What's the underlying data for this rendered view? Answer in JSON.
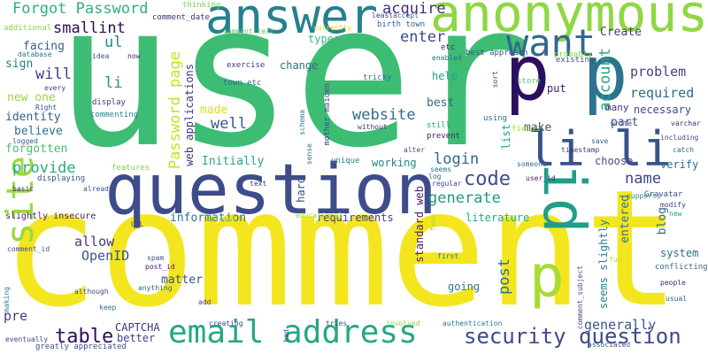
{
  "words": [
    {
      "text": "user",
      "color": "#3dbc74"
    },
    {
      "text": "comment",
      "color": "#f4e61e"
    },
    {
      "text": "question",
      "color": "#3e4c8a"
    },
    {
      "text": "anonymous",
      "color": "#8fd744"
    },
    {
      "text": "answer",
      "color": "#27808e"
    },
    {
      "text": "p",
      "color": "#2b0f5e"
    },
    {
      "text": "p",
      "color": "#2c738e"
    },
    {
      "text": "p",
      "color": "#a8db34"
    },
    {
      "text": "id",
      "color": "#1f9e89"
    },
    {
      "text": "want",
      "color": "#31688e"
    },
    {
      "text": "li li",
      "color": "#3a528b"
    },
    {
      "text": "site",
      "color": "#9ad93c"
    },
    {
      "text": "email address",
      "color": "#26a784"
    },
    {
      "text": "security question",
      "color": "#3e4989"
    },
    {
      "text": "Forgot Password",
      "color": "#30b07a"
    },
    {
      "text": "smallint",
      "color": "#2c0b54"
    },
    {
      "text": "ul",
      "color": "#228b8d"
    },
    {
      "text": "li",
      "color": "#20928c"
    },
    {
      "text": "will",
      "color": "#443b84"
    },
    {
      "text": "sign",
      "color": "#287d8e"
    },
    {
      "text": "new one",
      "color": "#97d83f"
    },
    {
      "text": "identity",
      "color": "#31648d"
    },
    {
      "text": "believe",
      "color": "#2c718e"
    },
    {
      "text": "forgotten",
      "color": "#4ac16d"
    },
    {
      "text": "facing",
      "color": "#365d8d"
    },
    {
      "text": "provide",
      "color": "#25ac82"
    },
    {
      "text": "Password page",
      "color": "#c8e020"
    },
    {
      "text": "web applications",
      "color": "#46337f"
    },
    {
      "text": "made",
      "color": "#d2e21b"
    },
    {
      "text": "well",
      "color": "#38588c"
    },
    {
      "text": "Initially",
      "color": "#23a983"
    },
    {
      "text": "information",
      "color": "#2a778e"
    },
    {
      "text": "allow",
      "color": "#453781"
    },
    {
      "text": "OpenID",
      "color": "#3b528b"
    },
    {
      "text": "matter",
      "color": "#3d4e8a"
    },
    {
      "text": "table",
      "color": "#2c0f5b"
    },
    {
      "text": "pre",
      "color": "#433d84"
    },
    {
      "text": "CAPTCHA",
      "color": "#46327e"
    },
    {
      "text": "better",
      "color": "#433e85"
    },
    {
      "text": "acquire",
      "color": "#472d7b"
    },
    {
      "text": "enter",
      "color": "#3f4788"
    },
    {
      "text": "types",
      "color": "#37b878"
    },
    {
      "text": "change",
      "color": "#2e6d8e"
    },
    {
      "text": "help",
      "color": "#20a486"
    },
    {
      "text": "Create",
      "color": "#423f85"
    },
    {
      "text": "account",
      "color": "#22a785"
    },
    {
      "text": "problem",
      "color": "#414287"
    },
    {
      "text": "required",
      "color": "#2f6c8e"
    },
    {
      "text": "website",
      "color": "#306a8e"
    },
    {
      "text": "best",
      "color": "#2e6e8e"
    },
    {
      "text": "make",
      "color": "#3e4a89"
    },
    {
      "text": "part",
      "color": "#3b518b"
    },
    {
      "text": "put",
      "color": "#481467"
    },
    {
      "text": "many",
      "color": "#472f7d"
    },
    {
      "text": "necessary",
      "color": "#3f4889"
    },
    {
      "text": "login",
      "color": "#31678e"
    },
    {
      "text": "code",
      "color": "#3d4e8a"
    },
    {
      "text": "generate",
      "color": "#1f998a"
    },
    {
      "text": "name",
      "color": "#404588"
    },
    {
      "text": "working",
      "color": "#25858e"
    },
    {
      "text": "choose",
      "color": "#3d4d8a"
    },
    {
      "text": "verify",
      "color": "#2d708e"
    },
    {
      "text": "requirements",
      "color": "#424086"
    },
    {
      "text": "literature",
      "color": "#24aa83"
    },
    {
      "text": "post",
      "color": "#2b748e"
    },
    {
      "text": "hard",
      "color": "#3b528b"
    },
    {
      "text": "standard web",
      "color": "#482374"
    },
    {
      "text": "entered",
      "color": "#2d718e"
    },
    {
      "text": "blog",
      "color": "#31688e"
    },
    {
      "text": "going",
      "color": "#2a788e"
    },
    {
      "text": "seems slightly",
      "color": "#27808e"
    },
    {
      "text": "generally",
      "color": "#39568c"
    },
    {
      "text": "system",
      "color": "#2c728e"
    },
    {
      "text": "list",
      "color": "#1fa088"
    },
    {
      "text": "comment_date",
      "color": "#472a7a"
    },
    {
      "text": "thinking",
      "color": "#7ad151"
    },
    {
      "text": "comment_text",
      "color": "#5ec962"
    },
    {
      "text": "birth town",
      "color": "#32648e"
    },
    {
      "text": "accept",
      "color": "#31668e"
    },
    {
      "text": "least",
      "color": "#453882"
    },
    {
      "text": "best approach",
      "color": "#39568c"
    },
    {
      "text": "existing",
      "color": "#3b528b"
    },
    {
      "text": "probably",
      "color": "#7fd34e"
    },
    {
      "text": "additional",
      "color": "#8bd646"
    },
    {
      "text": "database",
      "color": "#2d708e"
    },
    {
      "text": "idea",
      "color": "#3c4f8a"
    },
    {
      "text": "now",
      "color": "#481a6c"
    },
    {
      "text": "etc",
      "color": "#482071"
    },
    {
      "text": "enabled",
      "color": "#2f6c8e"
    },
    {
      "text": "every",
      "color": "#404387"
    },
    {
      "text": "Right",
      "color": "#3e4989"
    },
    {
      "text": "commenting",
      "color": "#26828e"
    },
    {
      "text": "display",
      "color": "#463480"
    },
    {
      "text": "exercise",
      "color": "#443983"
    },
    {
      "text": "town etc",
      "color": "#2f6b8e"
    },
    {
      "text": "tricky",
      "color": "#2c718e"
    },
    {
      "text": "sort",
      "color": "#3f4688"
    },
    {
      "text": "store",
      "color": "#52c569"
    },
    {
      "text": "fields",
      "color": "#a0da39"
    },
    {
      "text": "using",
      "color": "#2c728e"
    },
    {
      "text": "still",
      "color": "#1fa188"
    },
    {
      "text": "prevent",
      "color": "#481b6d"
    },
    {
      "text": "without",
      "color": "#472e7c"
    },
    {
      "text": "mother maiden",
      "color": "#3f4889"
    },
    {
      "text": "schema",
      "color": "#2a768e"
    },
    {
      "text": "logged",
      "color": "#38598c"
    },
    {
      "text": "features",
      "color": "#7ad151"
    },
    {
      "text": "sense",
      "color": "#2d6f8e"
    },
    {
      "text": "unique",
      "color": "#25848e"
    },
    {
      "text": "alter",
      "color": "#3e4c8a"
    },
    {
      "text": "seems",
      "color": "#2c738e"
    },
    {
      "text": "someone",
      "color": "#306a8e"
    },
    {
      "text": "user_id",
      "color": "#481d6f"
    },
    {
      "text": "timestamp",
      "color": "#453781"
    },
    {
      "text": "save",
      "color": "#2e6d8e"
    },
    {
      "text": "varchar",
      "color": "#472c7a"
    },
    {
      "text": "write",
      "color": "#3c4f8a"
    },
    {
      "text": "including",
      "color": "#3e4a89"
    },
    {
      "text": "catch",
      "color": "#2c728e"
    },
    {
      "text": "Gravatar",
      "color": "#3d4e8a"
    },
    {
      "text": "modify",
      "color": "#433e85"
    },
    {
      "text": "supports",
      "color": "#23898e"
    },
    {
      "text": "new",
      "color": "#1fa287"
    },
    {
      "text": "displaying",
      "color": "#3b528b"
    },
    {
      "text": "basic",
      "color": "#472a7a"
    },
    {
      "text": "already",
      "color": "#3b518b"
    },
    {
      "text": "text",
      "color": "#443983"
    },
    {
      "text": "slightly insecure",
      "color": "#482173"
    },
    {
      "text": "educational",
      "color": "#9fda3a"
    },
    {
      "text": "prompt",
      "color": "#a2da37"
    },
    {
      "text": "regular",
      "color": "#3f4788"
    },
    {
      "text": "fake",
      "color": "#a5db36"
    },
    {
      "text": "log",
      "color": "#2e6e8e"
    },
    {
      "text": "URL",
      "color": "#3e4c8a"
    },
    {
      "text": "comment_id",
      "color": "#3a548c"
    },
    {
      "text": "spam",
      "color": "#39568c"
    },
    {
      "text": "post_id",
      "color": "#481668"
    },
    {
      "text": "first",
      "color": "#2a788e"
    },
    {
      "text": "fun",
      "color": "#b5de2b"
    },
    {
      "text": "conflicting",
      "color": "#32658e"
    },
    {
      "text": "comment_subject",
      "color": "#3e4a89"
    },
    {
      "text": "people",
      "color": "#482475"
    },
    {
      "text": "usual",
      "color": "#34608d"
    },
    {
      "text": "although",
      "color": "#404688"
    },
    {
      "text": "anything",
      "color": "#31678e"
    },
    {
      "text": "making",
      "color": "#24868e"
    },
    {
      "text": "keep",
      "color": "#2c738e"
    },
    {
      "text": "add",
      "color": "#404387"
    },
    {
      "text": "creating",
      "color": "#433e85"
    },
    {
      "text": "tries",
      "color": "#39568c"
    },
    {
      "text": "involved",
      "color": "#8bd646"
    },
    {
      "text": "authentication",
      "color": "#2a778e"
    },
    {
      "text": "bad",
      "color": "#3c4f8a"
    },
    {
      "text": "eventually",
      "color": "#3e4a89"
    },
    {
      "text": "greatly appreciated",
      "color": "#3c508b"
    },
    {
      "text": "currently",
      "color": "#d5e21a"
    },
    {
      "text": "associated",
      "color": "#39568c"
    }
  ]
}
